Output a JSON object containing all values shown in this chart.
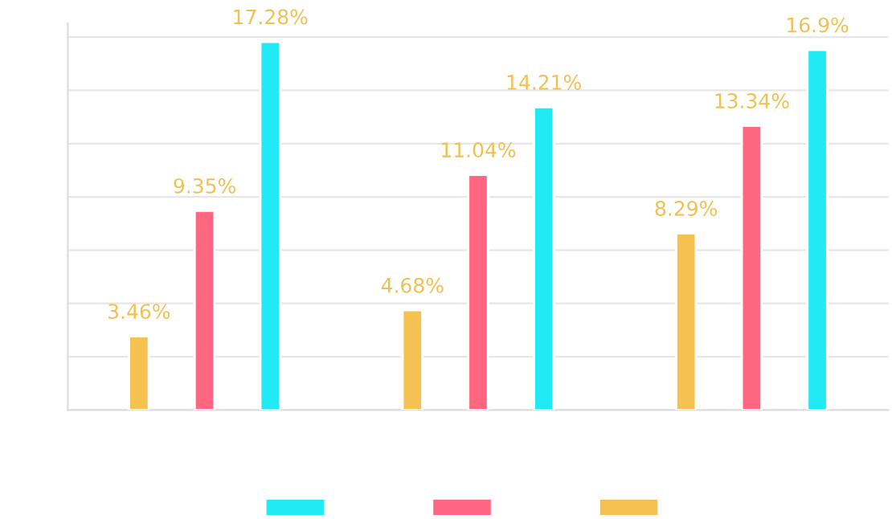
{
  "chart_data": {
    "type": "bar",
    "categories": [
      null,
      null,
      null
    ],
    "series": [
      {
        "color": "#f5c150",
        "values": [
          3.46,
          4.68,
          8.29
        ],
        "value_labels": [
          "3.46%",
          "4.68%",
          "8.29%"
        ]
      },
      {
        "color": "#ff6680",
        "values": [
          9.35,
          11.04,
          13.34
        ],
        "value_labels": [
          "9.35%",
          "11.04%",
          "13.34%"
        ]
      },
      {
        "color": "#22eaf5",
        "values": [
          17.28,
          14.21,
          16.9
        ],
        "value_labels": [
          "17.28%",
          "14.21%",
          "16.9%"
        ]
      }
    ],
    "grid": "y"
  }
}
